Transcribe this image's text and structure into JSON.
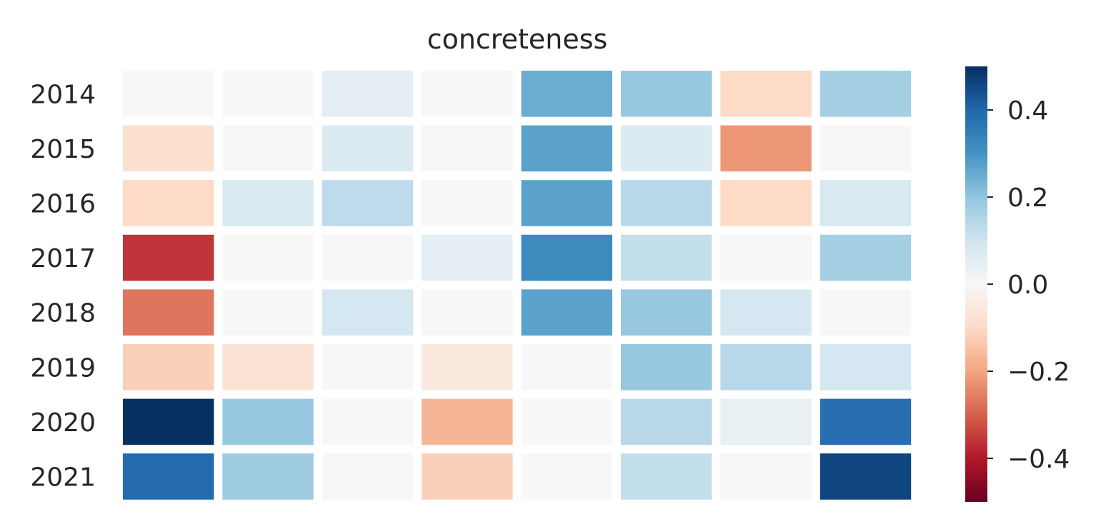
{
  "chart_data": {
    "type": "heatmap",
    "title": "concreteness",
    "xlabel": "",
    "ylabel": "",
    "rows": [
      "2014",
      "2015",
      "2016",
      "2017",
      "2018",
      "2019",
      "2020",
      "2021"
    ],
    "columns": [
      "",
      "",
      "",
      "",
      "",
      "",
      "",
      ""
    ],
    "values": [
      [
        0.0,
        0.0,
        0.05,
        0.0,
        0.25,
        0.19,
        -0.1,
        0.17
      ],
      [
        -0.08,
        0.0,
        0.07,
        0.0,
        0.27,
        0.07,
        -0.22,
        0.0
      ],
      [
        -0.1,
        0.08,
        0.13,
        0.0,
        0.27,
        0.14,
        -0.1,
        0.08
      ],
      [
        -0.36,
        0.0,
        0.0,
        0.05,
        0.32,
        0.12,
        0.0,
        0.17
      ],
      [
        -0.27,
        0.0,
        0.09,
        0.0,
        0.27,
        0.19,
        0.09,
        0.0
      ],
      [
        -0.12,
        -0.07,
        0.0,
        -0.05,
        0.0,
        0.19,
        0.14,
        0.09
      ],
      [
        0.5,
        0.19,
        0.0,
        -0.17,
        0.0,
        0.14,
        0.04,
        0.38
      ],
      [
        0.39,
        0.18,
        0.0,
        -0.12,
        0.0,
        0.12,
        0.0,
        0.46
      ]
    ],
    "vmin": -0.5,
    "vmax": 0.5,
    "colormap": "RdBu",
    "colorbar_ticks": [
      0.4,
      0.2,
      0.0,
      -0.2,
      -0.4
    ],
    "colorbar_tick_labels": [
      "0.4",
      "0.2",
      "0.0",
      "−0.2",
      "−0.4"
    ],
    "grid": false,
    "colors": {
      "stops": [
        "#67001f",
        "#b2182b",
        "#d6604d",
        "#f4a582",
        "#fddbc7",
        "#f7f7f7",
        "#d1e5f0",
        "#92c5de",
        "#4393c3",
        "#2166ac",
        "#053061"
      ],
      "text": "#262626",
      "cell_gap": "#ffffff"
    }
  }
}
